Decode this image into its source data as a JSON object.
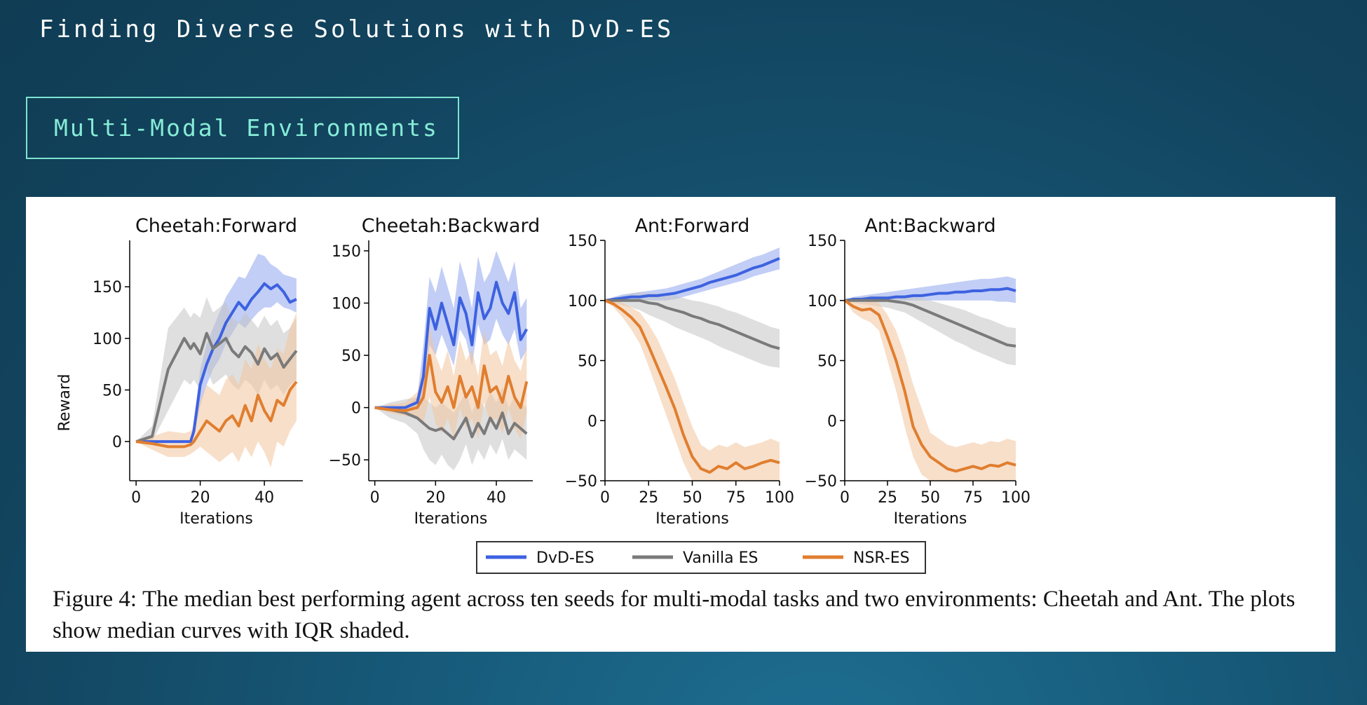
{
  "slide": {
    "title": "Finding Diverse Solutions with DvD-ES",
    "section_label": "Multi-Modal Environments"
  },
  "colors": {
    "dvd": "#3d62e0",
    "vanilla": "#7a7a7a",
    "nsr": "#e07e2f",
    "dvd_band": "#8fa6ef",
    "vanilla_band": "#c4c4c4",
    "nsr_band": "#f2c59c"
  },
  "legend": {
    "entries": [
      "DvD-ES",
      "Vanilla ES",
      "NSR-ES"
    ],
    "position": "bottom-center"
  },
  "caption": {
    "label": "Figure 4:",
    "text": "The median best performing agent across ten seeds for multi-modal tasks and two environments: Cheetah and Ant. The plots show median curves with IQR shaded."
  },
  "chart_data": [
    {
      "type": "line",
      "title": "Cheetah:Forward",
      "xlabel": "Iterations",
      "ylabel": "Reward",
      "xlim": [
        -2,
        52
      ],
      "ylim": [
        -38,
        195
      ],
      "xticks": [
        0,
        20,
        40
      ],
      "yticks": [
        0,
        50,
        100,
        150
      ],
      "x": [
        0,
        5,
        10,
        15,
        17,
        18,
        20,
        22,
        24,
        26,
        28,
        30,
        32,
        34,
        36,
        38,
        40,
        42,
        44,
        46,
        48,
        50
      ],
      "series": [
        {
          "name": "DvD-ES",
          "values": [
            0,
            0,
            0,
            0,
            0,
            10,
            55,
            75,
            90,
            100,
            115,
            125,
            135,
            128,
            138,
            145,
            153,
            148,
            152,
            145,
            135,
            138
          ]
        },
        {
          "name": "Vanilla ES",
          "values": [
            0,
            5,
            70,
            100,
            90,
            95,
            85,
            105,
            90,
            95,
            100,
            88,
            82,
            92,
            86,
            75,
            90,
            80,
            85,
            72,
            80,
            88
          ]
        },
        {
          "name": "NSR-ES",
          "values": [
            0,
            -2,
            -5,
            -5,
            -3,
            0,
            10,
            20,
            15,
            10,
            20,
            25,
            15,
            35,
            20,
            45,
            30,
            20,
            40,
            35,
            50,
            58
          ]
        }
      ],
      "bands": [
        {
          "name": "DvD-ES",
          "low": [
            0,
            0,
            0,
            0,
            0,
            5,
            35,
            55,
            70,
            80,
            95,
            105,
            115,
            110,
            118,
            125,
            130,
            130,
            135,
            130,
            128,
            125
          ],
          "high": [
            0,
            0,
            0,
            0,
            0,
            20,
            70,
            95,
            110,
            125,
            140,
            150,
            160,
            158,
            170,
            182,
            180,
            172,
            168,
            162,
            160,
            158
          ]
        },
        {
          "name": "Vanilla ES",
          "low": [
            0,
            0,
            30,
            60,
            55,
            60,
            50,
            70,
            55,
            60,
            65,
            55,
            50,
            60,
            55,
            45,
            60,
            50,
            55,
            45,
            55,
            60
          ],
          "high": [
            0,
            15,
            110,
            130,
            120,
            125,
            120,
            140,
            125,
            130,
            135,
            120,
            115,
            125,
            118,
            110,
            122,
            112,
            118,
            105,
            110,
            120
          ]
        },
        {
          "name": "NSR-ES",
          "low": [
            0,
            -8,
            -15,
            -15,
            -12,
            -10,
            -5,
            -10,
            -15,
            -20,
            -15,
            -10,
            -20,
            -5,
            -15,
            0,
            -10,
            -25,
            0,
            -5,
            10,
            20
          ],
          "high": [
            0,
            5,
            10,
            8,
            10,
            15,
            40,
            55,
            50,
            45,
            60,
            65,
            55,
            80,
            70,
            95,
            80,
            70,
            90,
            85,
            110,
            125
          ]
        }
      ]
    },
    {
      "type": "line",
      "title": "Cheetah:Backward",
      "xlabel": "Iterations",
      "ylabel": "",
      "xlim": [
        -2,
        52
      ],
      "ylim": [
        -70,
        160
      ],
      "xticks": [
        0,
        20,
        40
      ],
      "yticks": [
        -50,
        0,
        50,
        100,
        150
      ],
      "x": [
        0,
        5,
        10,
        14,
        16,
        18,
        20,
        22,
        24,
        26,
        28,
        30,
        32,
        34,
        36,
        38,
        40,
        42,
        44,
        46,
        48,
        50
      ],
      "series": [
        {
          "name": "DvD-ES",
          "values": [
            0,
            0,
            0,
            5,
            30,
            95,
            75,
            100,
            80,
            60,
            105,
            90,
            60,
            110,
            85,
            95,
            120,
            100,
            90,
            110,
            65,
            75
          ]
        },
        {
          "name": "Vanilla ES",
          "values": [
            0,
            -2,
            -5,
            -10,
            -15,
            -20,
            -22,
            -20,
            -25,
            -30,
            -20,
            -10,
            -28,
            -15,
            -25,
            -10,
            -20,
            -5,
            -25,
            -15,
            -20,
            -25
          ]
        },
        {
          "name": "NSR-ES",
          "values": [
            0,
            -2,
            -3,
            0,
            10,
            50,
            15,
            5,
            20,
            0,
            30,
            10,
            20,
            0,
            40,
            15,
            20,
            5,
            30,
            10,
            0,
            25
          ]
        }
      ],
      "bands": [
        {
          "name": "DvD-ES",
          "low": [
            0,
            0,
            0,
            0,
            10,
            60,
            50,
            70,
            55,
            40,
            75,
            65,
            40,
            80,
            60,
            65,
            85,
            70,
            60,
            75,
            45,
            55
          ],
          "high": [
            0,
            0,
            0,
            10,
            60,
            125,
            110,
            135,
            115,
            95,
            140,
            120,
            95,
            145,
            120,
            130,
            150,
            135,
            120,
            140,
            95,
            105
          ]
        },
        {
          "name": "Vanilla ES",
          "low": [
            0,
            -10,
            -15,
            -25,
            -40,
            -50,
            -55,
            -45,
            -55,
            -60,
            -50,
            -35,
            -55,
            -40,
            -50,
            -35,
            -45,
            -30,
            -50,
            -40,
            -45,
            -50
          ],
          "high": [
            0,
            5,
            8,
            10,
            10,
            5,
            0,
            5,
            0,
            -5,
            5,
            15,
            -5,
            10,
            0,
            15,
            5,
            20,
            0,
            10,
            5,
            0
          ]
        },
        {
          "name": "NSR-ES",
          "low": [
            0,
            -5,
            -8,
            -10,
            -15,
            10,
            -15,
            -25,
            -10,
            -30,
            0,
            -20,
            -10,
            -30,
            5,
            -15,
            -10,
            -25,
            0,
            -20,
            -30,
            -5
          ],
          "high": [
            0,
            3,
            5,
            15,
            40,
            80,
            50,
            35,
            55,
            30,
            65,
            45,
            55,
            30,
            75,
            50,
            55,
            40,
            65,
            45,
            35,
            60
          ]
        }
      ]
    },
    {
      "type": "line",
      "title": "Ant:Forward",
      "xlabel": "Iterations",
      "ylabel": "",
      "xlim": [
        0,
        100
      ],
      "ylim": [
        -50,
        150
      ],
      "xticks": [
        0,
        25,
        50,
        75,
        100
      ],
      "yticks": [
        -50,
        0,
        50,
        100,
        150
      ],
      "x": [
        0,
        5,
        10,
        15,
        20,
        25,
        30,
        35,
        40,
        45,
        50,
        55,
        60,
        65,
        70,
        75,
        80,
        85,
        90,
        95,
        100
      ],
      "series": [
        {
          "name": "DvD-ES",
          "values": [
            100,
            101,
            102,
            103,
            103,
            104,
            104,
            105,
            106,
            108,
            110,
            112,
            115,
            117,
            119,
            121,
            124,
            127,
            129,
            132,
            135
          ]
        },
        {
          "name": "Vanilla ES",
          "values": [
            100,
            100,
            100,
            100,
            100,
            98,
            97,
            94,
            92,
            90,
            87,
            85,
            82,
            80,
            77,
            74,
            71,
            68,
            65,
            62,
            60
          ]
        },
        {
          "name": "NSR-ES",
          "values": [
            100,
            97,
            92,
            86,
            78,
            62,
            45,
            28,
            10,
            -12,
            -30,
            -40,
            -43,
            -38,
            -40,
            -35,
            -40,
            -38,
            -35,
            -33,
            -35
          ]
        }
      ],
      "bands": [
        {
          "name": "DvD-ES",
          "low": [
            100,
            100,
            100,
            100,
            100,
            100,
            100,
            100,
            101,
            103,
            105,
            107,
            109,
            111,
            113,
            115,
            117,
            120,
            122,
            124,
            126
          ],
          "high": [
            100,
            103,
            105,
            106,
            107,
            108,
            109,
            110,
            112,
            114,
            116,
            118,
            121,
            124,
            127,
            130,
            133,
            136,
            138,
            141,
            144
          ]
        },
        {
          "name": "Vanilla ES",
          "low": [
            100,
            98,
            96,
            94,
            92,
            88,
            85,
            82,
            78,
            75,
            72,
            69,
            66,
            62,
            59,
            56,
            53,
            50,
            47,
            45,
            44
          ],
          "high": [
            100,
            102,
            104,
            106,
            107,
            106,
            106,
            105,
            104,
            102,
            100,
            99,
            97,
            95,
            92,
            90,
            87,
            84,
            81,
            78,
            76
          ]
        },
        {
          "name": "NSR-ES",
          "low": [
            100,
            94,
            86,
            76,
            64,
            45,
            25,
            5,
            -15,
            -35,
            -50,
            -50,
            -50,
            -50,
            -50,
            -50,
            -50,
            -50,
            -50,
            -50,
            -50
          ],
          "high": [
            100,
            100,
            98,
            94,
            90,
            80,
            68,
            52,
            35,
            15,
            -5,
            -20,
            -25,
            -20,
            -22,
            -18,
            -22,
            -20,
            -18,
            -15,
            -18
          ]
        }
      ]
    },
    {
      "type": "line",
      "title": "Ant:Backward",
      "xlabel": "Iterations",
      "ylabel": "",
      "xlim": [
        0,
        100
      ],
      "ylim": [
        -50,
        150
      ],
      "xticks": [
        0,
        25,
        50,
        75,
        100
      ],
      "yticks": [
        -50,
        0,
        50,
        100,
        150
      ],
      "x": [
        0,
        5,
        10,
        15,
        20,
        25,
        30,
        35,
        40,
        45,
        50,
        55,
        60,
        65,
        70,
        75,
        80,
        85,
        90,
        95,
        100
      ],
      "series": [
        {
          "name": "DvD-ES",
          "values": [
            100,
            101,
            101,
            102,
            102,
            102,
            103,
            103,
            104,
            104,
            105,
            106,
            106,
            107,
            107,
            108,
            108,
            109,
            109,
            110,
            108
          ]
        },
        {
          "name": "Vanilla ES",
          "values": [
            100,
            100,
            100,
            100,
            100,
            100,
            99,
            98,
            96,
            93,
            90,
            87,
            84,
            81,
            78,
            75,
            72,
            69,
            66,
            63,
            62
          ]
        },
        {
          "name": "NSR-ES",
          "values": [
            100,
            95,
            92,
            93,
            88,
            70,
            50,
            25,
            -5,
            -20,
            -30,
            -35,
            -40,
            -42,
            -40,
            -38,
            -40,
            -37,
            -38,
            -35,
            -37
          ]
        }
      ],
      "bands": [
        {
          "name": "DvD-ES",
          "low": [
            100,
            100,
            100,
            100,
            100,
            100,
            100,
            100,
            100,
            100,
            100,
            100,
            100,
            100,
            100,
            100,
            100,
            100,
            99,
            99,
            98
          ],
          "high": [
            100,
            103,
            104,
            105,
            106,
            107,
            108,
            109,
            110,
            111,
            112,
            113,
            114,
            115,
            116,
            117,
            118,
            118,
            119,
            120,
            118
          ]
        },
        {
          "name": "Vanilla ES",
          "low": [
            100,
            98,
            97,
            96,
            95,
            94,
            92,
            90,
            86,
            82,
            78,
            74,
            70,
            66,
            63,
            59,
            56,
            53,
            50,
            47,
            46
          ],
          "high": [
            100,
            102,
            103,
            104,
            104,
            104,
            104,
            104,
            103,
            102,
            100,
            98,
            96,
            94,
            92,
            89,
            86,
            84,
            81,
            78,
            77
          ]
        },
        {
          "name": "NSR-ES",
          "low": [
            100,
            90,
            85,
            82,
            75,
            50,
            25,
            -5,
            -30,
            -45,
            -50,
            -50,
            -50,
            -50,
            -50,
            -50,
            -50,
            -50,
            -50,
            -50,
            -50
          ],
          "high": [
            100,
            100,
            98,
            100,
            98,
            88,
            75,
            55,
            30,
            10,
            -10,
            -15,
            -20,
            -22,
            -20,
            -18,
            -20,
            -17,
            -18,
            -15,
            -17
          ]
        }
      ]
    }
  ]
}
